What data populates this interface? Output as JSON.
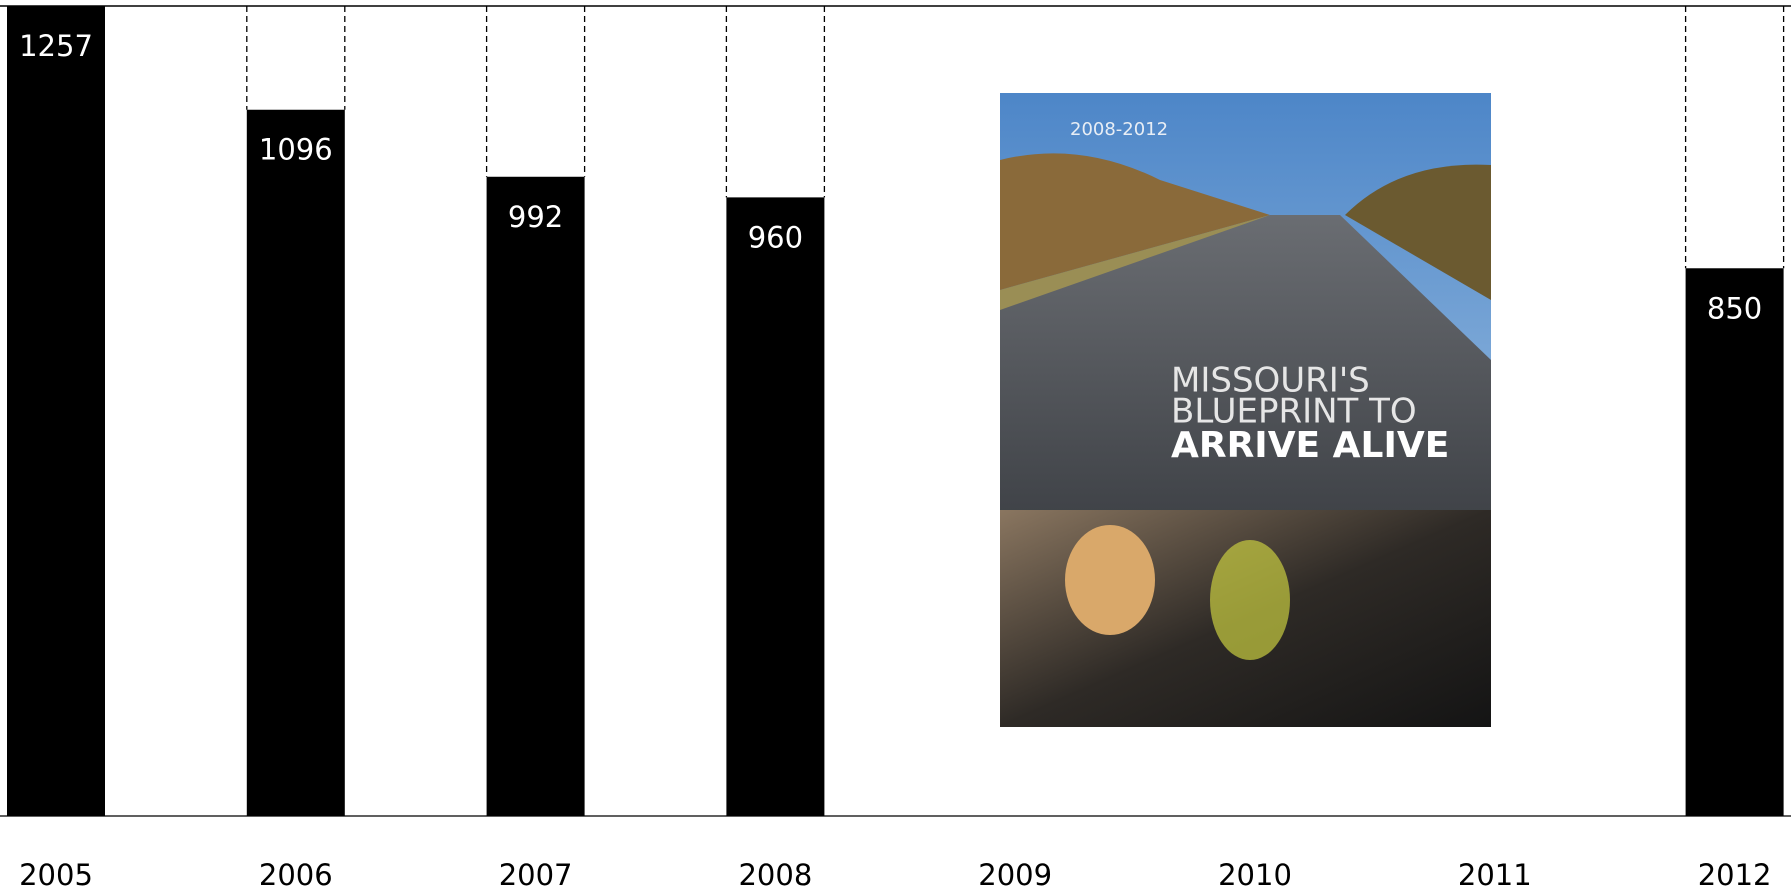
{
  "chart_data": {
    "type": "bar",
    "categories": [
      "2005",
      "2006",
      "2007",
      "2008",
      "2009",
      "2010",
      "2011",
      "2012"
    ],
    "values": [
      1257,
      1096,
      992,
      960,
      null,
      null,
      null,
      850
    ],
    "color": "#000000",
    "ylim": [
      0,
      1257
    ]
  },
  "cover": {
    "years": "2008-2012",
    "title": [
      "MISSOURI'S",
      "BLUEPRINT TO",
      "ARRIVE ALIVE"
    ]
  }
}
